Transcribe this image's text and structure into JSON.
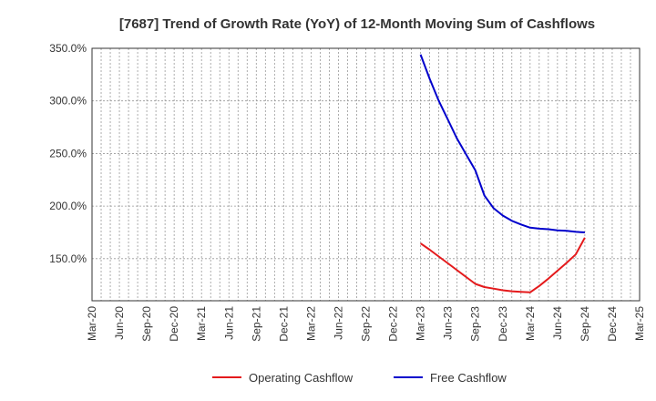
{
  "chart_data": {
    "type": "line",
    "title": "[7687]  Trend of Growth Rate (YoY) of 12-Month Moving Sum of Cashflows",
    "xlabel": "",
    "ylabel": "",
    "x_tick_labels": [
      "Mar-20",
      "Jun-20",
      "Sep-20",
      "Dec-20",
      "Mar-21",
      "Jun-21",
      "Sep-21",
      "Dec-21",
      "Mar-22",
      "Jun-22",
      "Sep-22",
      "Dec-22",
      "Mar-23",
      "Jun-23",
      "Sep-23",
      "Dec-23",
      "Mar-24",
      "Jun-24",
      "Sep-24",
      "Dec-24",
      "Mar-25"
    ],
    "y_ticks": [
      150,
      200,
      250,
      300,
      350
    ],
    "y_tick_labels": [
      "150.0%",
      "200.0%",
      "250.0%",
      "300.0%",
      "350.0%"
    ],
    "ylim": [
      110,
      350
    ],
    "grid": true,
    "legend_position": "bottom",
    "series": [
      {
        "name": "Operating Cashflow",
        "color": "#e41a1c",
        "x": [
          "2023-03",
          "2023-04",
          "2023-05",
          "2023-06",
          "2023-07",
          "2023-08",
          "2023-09",
          "2023-10",
          "2023-11",
          "2023-12",
          "2024-01",
          "2024-02",
          "2024-03",
          "2024-04",
          "2024-05",
          "2024-06",
          "2024-07",
          "2024-08",
          "2024-09"
        ],
        "values": [
          164.5,
          158.5,
          152.0,
          145.5,
          139.0,
          132.5,
          126.0,
          123.0,
          121.5,
          120.0,
          119.0,
          118.5,
          118.0,
          124.0,
          131.0,
          138.5,
          146.0,
          154.0,
          170.0
        ]
      },
      {
        "name": "Free Cashflow",
        "color": "#0000cc",
        "x": [
          "2023-03",
          "2023-04",
          "2023-05",
          "2023-06",
          "2023-07",
          "2023-08",
          "2023-09",
          "2023-10",
          "2023-11",
          "2023-12",
          "2024-01",
          "2024-02",
          "2024-03",
          "2024-04",
          "2024-05",
          "2024-06",
          "2024-07",
          "2024-08",
          "2024-09"
        ],
        "values": [
          344.0,
          321.0,
          300.0,
          282.0,
          264.0,
          249.0,
          234.0,
          210.0,
          198.0,
          191.0,
          186.0,
          182.5,
          179.5,
          178.5,
          178.0,
          177.0,
          176.5,
          175.5,
          175.0
        ]
      }
    ]
  }
}
